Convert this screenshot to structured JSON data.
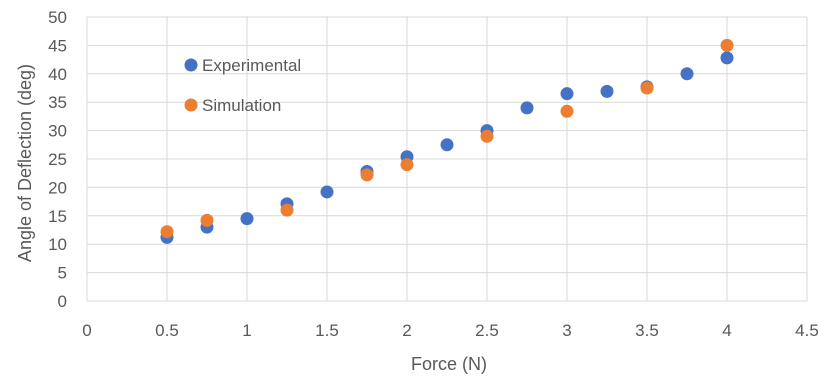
{
  "chart_data": {
    "type": "scatter",
    "title": "",
    "xlabel": "Force (N)",
    "ylabel": "Angle of Deflection (deg)",
    "xlim": [
      0,
      4.5
    ],
    "ylim": [
      0,
      50
    ],
    "x_ticks": [
      "0",
      "0.5",
      "1",
      "1.5",
      "2",
      "2.5",
      "3",
      "3.5",
      "4",
      "4.5"
    ],
    "y_ticks": [
      "0",
      "5",
      "10",
      "15",
      "20",
      "25",
      "30",
      "35",
      "40",
      "45",
      "50"
    ],
    "grid": true,
    "legend_position": "top-left inside",
    "series": [
      {
        "name": "Experimental",
        "color": "#4472C4",
        "points": [
          {
            "x": 0.5,
            "y": 11.2
          },
          {
            "x": 0.75,
            "y": 13.0
          },
          {
            "x": 1.0,
            "y": 14.5
          },
          {
            "x": 1.25,
            "y": 17.1
          },
          {
            "x": 1.5,
            "y": 19.2
          },
          {
            "x": 1.75,
            "y": 22.8
          },
          {
            "x": 2.0,
            "y": 25.4
          },
          {
            "x": 2.25,
            "y": 27.5
          },
          {
            "x": 2.5,
            "y": 30.0
          },
          {
            "x": 2.75,
            "y": 34.0
          },
          {
            "x": 3.0,
            "y": 36.5
          },
          {
            "x": 3.25,
            "y": 36.9
          },
          {
            "x": 3.5,
            "y": 37.7
          },
          {
            "x": 3.75,
            "y": 40.0
          },
          {
            "x": 4.0,
            "y": 42.8
          }
        ]
      },
      {
        "name": "Simulation",
        "color": "#ED7D31",
        "points": [
          {
            "x": 0.5,
            "y": 12.2
          },
          {
            "x": 0.75,
            "y": 14.2
          },
          {
            "x": 1.25,
            "y": 16.0
          },
          {
            "x": 1.75,
            "y": 22.2
          },
          {
            "x": 2.0,
            "y": 24.0
          },
          {
            "x": 2.5,
            "y": 29.0
          },
          {
            "x": 3.0,
            "y": 33.4
          },
          {
            "x": 3.5,
            "y": 37.5
          },
          {
            "x": 4.0,
            "y": 45.0
          }
        ]
      }
    ]
  }
}
